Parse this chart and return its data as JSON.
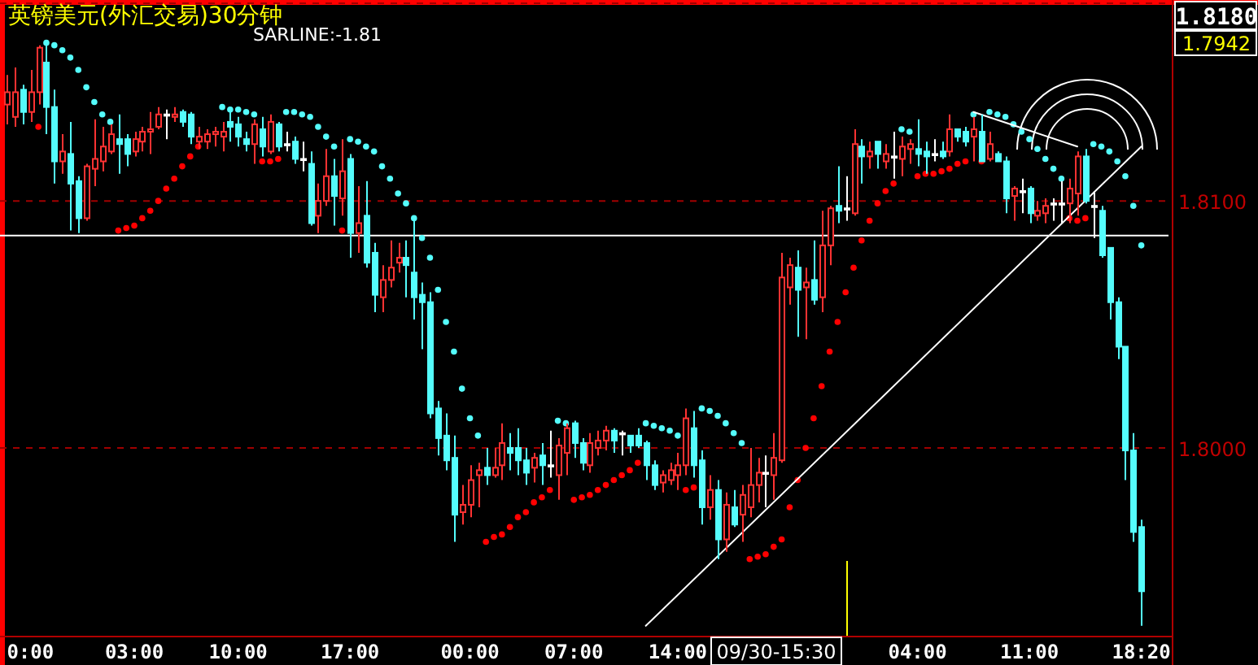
{
  "chart_data": {
    "type": "candlestick",
    "title": "英镑美元(外汇交易)30分钟",
    "annotations": [
      "SARLINE:-1.81",
      "1.7942",
      "09/30-15:30"
    ],
    "categories": [
      null,
      null,
      null,
      "0:00",
      null,
      null,
      null,
      null,
      null,
      null,
      null,
      null,
      null,
      null,
      null,
      null,
      "03:00",
      null,
      null,
      null,
      null,
      null,
      null,
      null,
      null,
      null,
      null,
      null,
      null,
      "10:00",
      null,
      null,
      null,
      null,
      null,
      null,
      null,
      null,
      null,
      null,
      null,
      null,
      null,
      "17:00",
      null,
      null,
      null,
      null,
      null,
      null,
      null,
      null,
      null,
      null,
      null,
      null,
      null,
      null,
      "00:00",
      null,
      null,
      null,
      null,
      null,
      null,
      null,
      null,
      null,
      null,
      null,
      null,
      "07:00",
      null,
      null,
      null,
      null,
      null,
      null,
      null,
      null,
      null,
      null,
      null,
      null,
      "14:00",
      null,
      null,
      null,
      null,
      null,
      null,
      null,
      null,
      null,
      null,
      null,
      null,
      null,
      null,
      null,
      null,
      null,
      null,
      null,
      null,
      null,
      null,
      null,
      null,
      null,
      null,
      null,
      null,
      null,
      "04:00",
      null,
      null,
      null,
      null,
      null,
      null,
      null,
      null,
      null,
      null,
      null,
      null,
      null,
      "11:00",
      null,
      null,
      null,
      null,
      null,
      null,
      null,
      null,
      null,
      null,
      null,
      null,
      null,
      "18:20"
    ],
    "ohlc": [
      [
        1.8139,
        1.8151,
        1.8131,
        1.8144
      ],
      [
        1.8134,
        1.8154,
        1.813,
        1.8144
      ],
      [
        1.8145,
        1.8147,
        1.8131,
        1.8136
      ],
      [
        1.8136,
        1.8153,
        1.8132,
        1.8144
      ],
      [
        1.8144,
        1.8163,
        1.8139,
        1.8162
      ],
      [
        1.8156,
        1.8164,
        1.8127,
        1.8138
      ],
      [
        1.8138,
        1.8145,
        1.8107,
        1.8116
      ],
      [
        1.8116,
        1.8127,
        1.8111,
        1.812
      ],
      [
        1.8119,
        1.8132,
        1.8088,
        1.8107
      ],
      [
        1.8108,
        1.811,
        1.8087,
        1.8093
      ],
      [
        1.8093,
        1.8115,
        1.8092,
        1.8114
      ],
      [
        1.8113,
        1.8133,
        1.8106,
        1.8117
      ],
      [
        1.8116,
        1.813,
        1.8112,
        1.8122
      ],
      [
        1.812,
        1.8131,
        1.8119,
        1.8127
      ],
      [
        1.8125,
        1.8135,
        1.8111,
        1.8123
      ],
      [
        1.8125,
        1.8127,
        1.8114,
        1.8119
      ],
      [
        1.812,
        1.8128,
        1.8118,
        1.8125
      ],
      [
        1.8124,
        1.813,
        1.812,
        1.8128
      ],
      [
        1.8128,
        1.8136,
        1.8119,
        1.8129
      ],
      [
        1.813,
        1.8138,
        1.8129,
        1.8135
      ],
      [
        1.8135,
        1.8137,
        1.8125,
        1.8135
      ],
      [
        1.8134,
        1.8138,
        1.8132,
        1.8135
      ],
      [
        1.8136,
        1.8137,
        1.813,
        1.8132
      ],
      [
        1.8135,
        1.8136,
        1.8123,
        1.8126
      ],
      [
        1.8124,
        1.813,
        1.8121,
        1.8126
      ],
      [
        1.8124,
        1.8129,
        1.8121,
        1.8127
      ],
      [
        1.8127,
        1.813,
        1.8122,
        1.8128
      ],
      [
        1.8126,
        1.8132,
        1.812,
        1.8128
      ],
      [
        1.8132,
        1.8137,
        1.8124,
        1.813
      ],
      [
        1.8131,
        1.8134,
        1.8122,
        1.8126
      ],
      [
        1.8125,
        1.8128,
        1.812,
        1.8123
      ],
      [
        1.8123,
        1.8133,
        1.8115,
        1.8131
      ],
      [
        1.8129,
        1.8134,
        1.8118,
        1.8122
      ],
      [
        1.812,
        1.8135,
        1.8119,
        1.8132
      ],
      [
        1.8131,
        1.8132,
        1.812,
        1.8122
      ],
      [
        1.8123,
        1.8128,
        1.812,
        1.8123
      ],
      [
        1.8124,
        1.8126,
        1.8115,
        1.8117
      ],
      [
        1.8117,
        1.8124,
        1.8112,
        1.8117
      ],
      [
        1.8115,
        1.812,
        1.809,
        1.8091
      ],
      [
        1.8094,
        1.8107,
        1.8087,
        1.81
      ],
      [
        1.81,
        1.8121,
        1.8098,
        1.811
      ],
      [
        1.811,
        1.8117,
        1.809,
        1.8102
      ],
      [
        1.8101,
        1.8125,
        1.8094,
        1.8112
      ],
      [
        1.8117,
        1.8119,
        1.8077,
        1.8087
      ],
      [
        1.8087,
        1.8106,
        1.8079,
        1.8091
      ],
      [
        1.8094,
        1.8108,
        1.8073,
        1.8075
      ],
      [
        1.8079,
        1.8083,
        1.8055,
        1.8062
      ],
      [
        1.8061,
        1.8074,
        1.8055,
        1.8068
      ],
      [
        1.8068,
        1.8084,
        1.8065,
        1.8073
      ],
      [
        1.8075,
        1.8083,
        1.8071,
        1.8077
      ],
      [
        1.8077,
        1.8084,
        1.8061,
        1.8074
      ],
      [
        1.8071,
        1.8093,
        1.8052,
        1.8061
      ],
      [
        1.8062,
        1.8067,
        1.804,
        1.8059
      ],
      [
        1.8059,
        1.8063,
        1.8012,
        1.8014
      ],
      [
        1.8016,
        1.8019,
        1.7997,
        1.8004
      ],
      [
        1.8005,
        1.8014,
        1.7991,
        1.7995
      ],
      [
        1.7996,
        1.8005,
        1.7962,
        1.7973
      ],
      [
        1.7974,
        1.7985,
        1.7969,
        1.7977
      ],
      [
        1.7977,
        1.7993,
        1.7972,
        1.7987
      ],
      [
        1.7989,
        1.7994,
        1.7976,
        1.7991
      ],
      [
        1.7992,
        1.8,
        1.7985,
        1.7989
      ],
      [
        1.7989,
        1.8,
        1.7988,
        1.7992
      ],
      [
        1.7993,
        1.801,
        1.7987,
        1.8002
      ],
      [
        1.8,
        1.8006,
        1.7991,
        1.7998
      ],
      [
        1.8,
        1.8008,
        1.7989,
        1.7995
      ],
      [
        1.7995,
        1.8,
        1.7985,
        1.799
      ],
      [
        1.7992,
        1.7998,
        1.7986,
        1.7996
      ],
      [
        1.7997,
        1.8002,
        1.7985,
        1.7993
      ],
      [
        1.7993,
        1.8007,
        1.7988,
        1.7993
      ],
      [
        1.7989,
        1.8004,
        1.7979,
        1.8001
      ],
      [
        1.7998,
        1.801,
        1.7989,
        1.8008
      ],
      [
        1.801,
        1.8011,
        1.7996,
        1.8002
      ],
      [
        1.8002,
        1.8004,
        1.7991,
        1.7994
      ],
      [
        1.7993,
        1.8006,
        1.799,
        1.8002
      ],
      [
        1.8,
        1.8007,
        1.7997,
        1.8003
      ],
      [
        1.8003,
        1.8009,
        1.7999,
        1.8007
      ],
      [
        1.8007,
        1.8008,
        1.7998,
        1.8003
      ],
      [
        1.8006,
        1.8007,
        1.7997,
        1.8006
      ],
      [
        1.8005,
        1.8005,
        1.7998,
        1.8001
      ],
      [
        1.8005,
        1.8008,
        1.8,
        1.8001
      ],
      [
        1.8002,
        1.8003,
        1.7987,
        1.7993
      ],
      [
        1.7993,
        1.7995,
        1.7983,
        1.7985
      ],
      [
        1.7986,
        1.7991,
        1.7982,
        1.7989
      ],
      [
        1.7987,
        1.7994,
        1.7985,
        1.7991
      ],
      [
        1.7989,
        1.7998,
        1.7983,
        1.7993
      ],
      [
        1.7993,
        1.8016,
        1.7989,
        1.8012
      ],
      [
        1.8008,
        1.8015,
        1.7988,
        1.7993
      ],
      [
        1.7995,
        1.7999,
        1.7969,
        1.7976
      ],
      [
        1.7976,
        1.7989,
        1.7971,
        1.7983
      ],
      [
        1.7983,
        1.7987,
        1.7955,
        1.7963
      ],
      [
        1.7963,
        1.7982,
        1.7958,
        1.7977
      ],
      [
        1.7976,
        1.7983,
        1.7968,
        1.7969
      ],
      [
        1.7973,
        1.7985,
        1.7962,
        1.7981
      ],
      [
        1.7976,
        1.8,
        1.7972,
        1.7985
      ],
      [
        1.7985,
        1.7996,
        1.7978,
        1.799
      ],
      [
        1.799,
        1.7997,
        1.7976,
        1.799
      ],
      [
        1.7989,
        1.8006,
        1.7979,
        1.7996
      ],
      [
        1.7995,
        1.8079,
        1.7994,
        1.8069
      ],
      [
        1.8065,
        1.8077,
        1.8058,
        1.8074
      ],
      [
        1.8073,
        1.808,
        1.8045,
        1.8064
      ],
      [
        1.8065,
        1.8073,
        1.8044,
        1.8067
      ],
      [
        1.8068,
        1.8084,
        1.8058,
        1.806
      ],
      [
        1.8061,
        1.8096,
        1.8055,
        1.8082
      ],
      [
        1.8082,
        1.8098,
        1.8074,
        1.8097
      ],
      [
        1.8098,
        1.8114,
        1.8091,
        1.8096
      ],
      [
        1.8097,
        1.811,
        1.8092,
        1.8097
      ],
      [
        1.8095,
        1.8129,
        1.8094,
        1.8123
      ],
      [
        1.8122,
        1.8125,
        1.8107,
        1.8118
      ],
      [
        1.8118,
        1.8124,
        1.8113,
        1.812
      ],
      [
        1.8124,
        1.8124,
        1.8113,
        1.8119
      ],
      [
        1.8116,
        1.8123,
        1.8113,
        1.8119
      ],
      [
        1.8118,
        1.8128,
        1.8109,
        1.8118
      ],
      [
        1.8117,
        1.8126,
        1.811,
        1.8122
      ],
      [
        1.8121,
        1.8125,
        1.8115,
        1.8123
      ],
      [
        1.8121,
        1.8133,
        1.8114,
        1.8119
      ],
      [
        1.812,
        1.8124,
        1.8111,
        1.8118
      ],
      [
        1.8119,
        1.8125,
        1.8116,
        1.8119
      ],
      [
        1.812,
        1.8124,
        1.8117,
        1.8118
      ],
      [
        1.812,
        1.8135,
        1.8118,
        1.8129
      ],
      [
        1.8129,
        1.8129,
        1.8124,
        1.8126
      ],
      [
        1.8128,
        1.813,
        1.8122,
        1.8124
      ],
      [
        1.8126,
        1.8134,
        1.8116,
        1.8129
      ],
      [
        1.8128,
        1.8135,
        1.8116,
        1.8116
      ],
      [
        1.8117,
        1.8128,
        1.8116,
        1.8123
      ],
      [
        1.8119,
        1.812,
        1.8116,
        1.8116
      ],
      [
        1.8116,
        1.8118,
        1.8095,
        1.8101
      ],
      [
        1.8102,
        1.8106,
        1.8092,
        1.8105
      ],
      [
        1.8104,
        1.8109,
        1.8095,
        1.8104
      ],
      [
        1.8105,
        1.8106,
        1.8091,
        1.8095
      ],
      [
        1.8094,
        1.81,
        1.8092,
        1.8096
      ],
      [
        1.8095,
        1.8101,
        1.8091,
        1.8098
      ],
      [
        1.8099,
        1.8101,
        1.8092,
        1.8099
      ],
      [
        1.8099,
        1.8108,
        1.8091,
        1.8099
      ],
      [
        1.8099,
        1.8109,
        1.8091,
        1.8105
      ],
      [
        1.8103,
        1.812,
        1.8094,
        1.8118
      ],
      [
        1.8118,
        1.8121,
        1.8099,
        1.81
      ],
      [
        1.8098,
        1.8104,
        1.8085,
        1.8098
      ],
      [
        1.8096,
        1.8098,
        1.8077,
        1.8078
      ],
      [
        1.8081,
        1.8081,
        1.8052,
        1.8059
      ],
      [
        1.8059,
        1.8061,
        1.8036,
        1.8041
      ],
      [
        1.8041,
        1.8041,
        1.7987,
        1.7999
      ],
      [
        1.7999,
        1.8006,
        1.7962,
        1.7966
      ],
      [
        1.7968,
        1.7971,
        1.7928,
        1.7942
      ]
    ],
    "colors": [
      "#ff3232",
      "#ff3232",
      "#54fcfc",
      "#ff3232",
      "#ff3232",
      "#54fcfc",
      "#54fcfc",
      "#ff3232",
      "#54fcfc",
      "#54fcfc",
      "#ff3232",
      "#ff3232",
      "#ff3232",
      "#ff3232",
      "#54fcfc",
      "#54fcfc",
      "#ff3232",
      "#ff3232",
      "#ff3232",
      "#ff3232",
      "#ffffff",
      "#ff3232",
      "#54fcfc",
      "#54fcfc",
      "#ff3232",
      "#ff3232",
      "#ff3232",
      "#ff3232",
      "#54fcfc",
      "#54fcfc",
      "#54fcfc",
      "#ff3232",
      "#54fcfc",
      "#ff3232",
      "#54fcfc",
      "#ffffff",
      "#54fcfc",
      "#ffffff",
      "#54fcfc",
      "#ff3232",
      "#ff3232",
      "#54fcfc",
      "#ff3232",
      "#54fcfc",
      "#ff3232",
      "#54fcfc",
      "#54fcfc",
      "#ff3232",
      "#ff3232",
      "#ff3232",
      "#54fcfc",
      "#54fcfc",
      "#54fcfc",
      "#54fcfc",
      "#54fcfc",
      "#54fcfc",
      "#54fcfc",
      "#ff3232",
      "#ff3232",
      "#ff3232",
      "#54fcfc",
      "#ff3232",
      "#ff3232",
      "#54fcfc",
      "#54fcfc",
      "#54fcfc",
      "#ff3232",
      "#54fcfc",
      "#ffffff",
      "#ff3232",
      "#ff3232",
      "#54fcfc",
      "#54fcfc",
      "#ff3232",
      "#ff3232",
      "#ff3232",
      "#54fcfc",
      "#ffffff",
      "#54fcfc",
      "#54fcfc",
      "#54fcfc",
      "#54fcfc",
      "#ff3232",
      "#ff3232",
      "#ff3232",
      "#ff3232",
      "#54fcfc",
      "#54fcfc",
      "#ff3232",
      "#54fcfc",
      "#ff3232",
      "#54fcfc",
      "#ff3232",
      "#ff3232",
      "#ff3232",
      "#ffffff",
      "#ff3232",
      "#ff3232",
      "#ff3232",
      "#54fcfc",
      "#ff3232",
      "#54fcfc",
      "#ff3232",
      "#ff3232",
      "#54fcfc",
      "#ffffff",
      "#ff3232",
      "#54fcfc",
      "#ff3232",
      "#54fcfc",
      "#ff3232",
      "#ffffff",
      "#ff3232",
      "#ff3232",
      "#54fcfc",
      "#54fcfc",
      "#ffffff",
      "#54fcfc",
      "#ff3232",
      "#54fcfc",
      "#54fcfc",
      "#ff3232",
      "#54fcfc",
      "#ff3232",
      "#54fcfc",
      "#54fcfc",
      "#ff3232",
      "#ffffff",
      "#54fcfc",
      "#ff3232",
      "#ff3232",
      "#ffffff",
      "#ffffff",
      "#ff3232",
      "#ff3232",
      "#54fcfc",
      "#ffffff",
      "#54fcfc",
      "#54fcfc",
      "#54fcfc",
      "#54fcfc",
      "#54fcfc",
      "#54fcfc"
    ],
    "series": [
      {
        "type": "scatter",
        "color": "#ff0000",
        "marker": "circle",
        "values": [
          null,
          null,
          null,
          null,
          1.813,
          null,
          null,
          null,
          null,
          null,
          null,
          null,
          null,
          null,
          1.8088,
          1.8089,
          1.809,
          1.8093,
          1.8096,
          1.81,
          1.8105,
          1.8109,
          1.8114,
          1.8118,
          1.8122,
          null,
          null,
          null,
          null,
          null,
          null,
          null,
          1.8116,
          1.8116,
          1.8117,
          null,
          null,
          null,
          null,
          null,
          null,
          null,
          1.8088,
          null,
          null,
          null,
          null,
          null,
          null,
          null,
          null,
          null,
          null,
          null,
          null,
          null,
          null,
          null,
          null,
          null,
          1.7962,
          1.7964,
          1.7965,
          1.7968,
          1.7972,
          1.7974,
          1.7978,
          1.798,
          1.7983,
          null,
          null,
          1.7979,
          1.798,
          1.7981,
          1.7983,
          1.7985,
          1.7987,
          1.7989,
          1.7991,
          1.7994,
          null,
          null,
          null,
          null,
          null,
          1.7983,
          1.7984,
          null,
          null,
          null,
          null,
          null,
          null,
          1.7955,
          1.7956,
          1.7957,
          1.796,
          1.7963,
          1.7976,
          1.7987,
          1.8,
          1.8012,
          1.8025,
          1.8039,
          1.8051,
          1.8063,
          1.8073,
          1.8084,
          1.8092,
          1.8099,
          1.8104,
          1.8107,
          null,
          null,
          1.811,
          1.8111,
          1.8111,
          1.8112,
          1.8113,
          1.8115,
          1.8116,
          null,
          1.8116,
          null,
          null,
          null,
          null,
          null,
          null,
          null,
          null,
          null,
          null,
          1.8093,
          1.8092,
          1.8093,
          null,
          null,
          null,
          null,
          null,
          null,
          null
        ]
      },
      {
        "type": "scatter",
        "color": "#54fcfc",
        "marker": "circle",
        "values": [
          null,
          null,
          null,
          null,
          null,
          1.8164,
          1.8163,
          1.8161,
          1.8158,
          1.8153,
          1.8146,
          1.814,
          1.8135,
          1.8132,
          null,
          null,
          null,
          null,
          null,
          null,
          null,
          null,
          null,
          null,
          null,
          null,
          null,
          1.8138,
          1.8137,
          1.8137,
          1.8136,
          1.8135,
          null,
          null,
          null,
          1.8136,
          1.8136,
          1.8135,
          1.8134,
          1.813,
          1.8126,
          1.8122,
          null,
          1.8125,
          1.8124,
          1.8122,
          1.812,
          1.8114,
          1.8109,
          1.8103,
          1.8099,
          1.8093,
          1.8085,
          1.8077,
          1.8064,
          1.8051,
          1.8039,
          1.8024,
          1.8012,
          1.8005,
          null,
          null,
          null,
          null,
          null,
          null,
          null,
          null,
          null,
          1.8011,
          1.801,
          null,
          null,
          null,
          null,
          null,
          null,
          null,
          null,
          null,
          1.801,
          1.8009,
          1.8008,
          1.8007,
          1.8005,
          null,
          null,
          1.8016,
          1.8015,
          1.8013,
          1.801,
          1.8006,
          1.8002,
          null,
          null,
          null,
          null,
          null,
          null,
          null,
          null,
          null,
          null,
          null,
          null,
          null,
          null,
          null,
          null,
          null,
          null,
          null,
          1.8129,
          1.8128,
          null,
          null,
          null,
          null,
          null,
          null,
          null,
          1.8135,
          null,
          1.8136,
          1.8135,
          1.8134,
          1.8131,
          1.8128,
          1.8125,
          1.8121,
          1.8117,
          1.8113,
          1.8109,
          null,
          null,
          null,
          1.8123,
          1.8122,
          1.812,
          1.8116,
          1.811,
          1.8098,
          1.8082
        ]
      },
      {
        "type": "line",
        "color": "#ffffff",
        "values": [
          null,
          null,
          null,
          null,
          null,
          null,
          null,
          null,
          null,
          null,
          null,
          null,
          null,
          null,
          null,
          null,
          null,
          null,
          null,
          null,
          null,
          null,
          null,
          null,
          null,
          null,
          null,
          null,
          null,
          null,
          null,
          null,
          null,
          null,
          null,
          null,
          null,
          null,
          null,
          null,
          null,
          null,
          null,
          null,
          null,
          null,
          null,
          null,
          null,
          null,
          null,
          null,
          null,
          null,
          null,
          null,
          null,
          null,
          null,
          null,
          null,
          null,
          null,
          null,
          null,
          null,
          null,
          null,
          null,
          null,
          null,
          null,
          null,
          null,
          null,
          null,
          null,
          null,
          null,
          null,
          1.7928,
          null,
          null,
          null,
          null,
          null,
          null,
          null,
          null,
          null,
          null,
          null,
          null,
          null,
          null,
          null,
          null,
          null,
          null,
          null,
          null,
          null,
          null,
          null,
          null,
          null,
          null,
          null,
          null,
          null,
          null,
          null,
          null,
          null,
          null,
          null,
          null,
          null,
          null,
          null,
          null,
          null,
          null,
          null,
          null,
          null,
          null,
          null,
          null,
          null,
          null,
          null,
          null,
          null,
          null,
          null,
          null,
          null,
          null,
          null,
          null,
          null,
          1.8122
        ]
      },
      {
        "type": "line",
        "color": "#ffffff",
        "values": [
          null,
          null,
          null,
          null,
          null,
          null,
          null,
          null,
          null,
          null,
          null,
          null,
          null,
          null,
          null,
          null,
          null,
          null,
          null,
          null,
          null,
          null,
          null,
          null,
          null,
          null,
          null,
          null,
          null,
          null,
          null,
          null,
          null,
          null,
          null,
          null,
          null,
          null,
          null,
          null,
          null,
          null,
          null,
          null,
          null,
          null,
          null,
          null,
          null,
          null,
          null,
          null,
          null,
          null,
          null,
          null,
          null,
          null,
          null,
          null,
          null,
          null,
          null,
          null,
          null,
          null,
          null,
          null,
          null,
          null,
          null,
          null,
          null,
          null,
          null,
          null,
          null,
          null,
          null,
          null,
          null,
          null,
          null,
          null,
          null,
          null,
          null,
          null,
          null,
          null,
          null,
          null,
          null,
          null,
          null,
          null,
          null,
          null,
          null,
          null,
          null,
          null,
          null,
          null,
          null,
          null,
          null,
          null,
          null,
          null,
          null,
          null,
          null,
          null,
          null,
          null,
          null,
          null,
          null,
          null,
          null,
          1.8136,
          null,
          null,
          null,
          null,
          null,
          null,
          null,
          null,
          null,
          null,
          null,
          null,
          1.8122,
          null,
          null,
          null,
          null,
          null,
          null,
          null,
          null
        ]
      }
    ],
    "line_style": "solid",
    "ylim": [
      1.7924,
      1.818
    ],
    "yticks": [
      {
        "value": 1.8,
        "label": "1.8000"
      },
      {
        "value": 1.81,
        "label": "1.8100"
      },
      {
        "value": 1.818,
        "label": "1.8180"
      }
    ],
    "grid": "y",
    "ref_lines": [
      {
        "axis": "y",
        "value": 1.8086,
        "color": "#ffffff"
      }
    ]
  }
}
